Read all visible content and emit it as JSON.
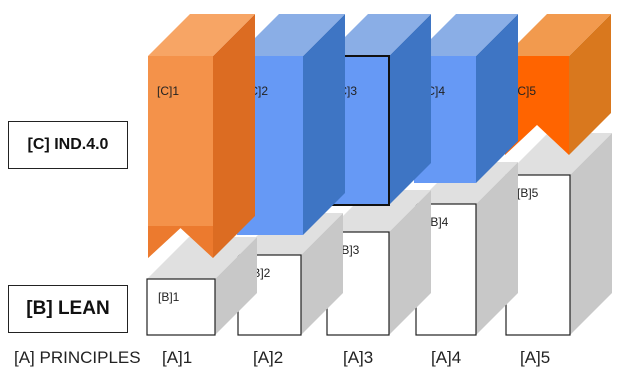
{
  "labels": {
    "c_row": "[C] IND.4.0",
    "b_row": "[B] LEAN",
    "a_row": "[A] PRINCIPLES"
  },
  "columns": [
    {
      "a": "[A]1",
      "b": "[B]1",
      "c": "[C]1",
      "c_color": "orange"
    },
    {
      "a": "[A]2",
      "b": "[B]2",
      "c": "[C]2",
      "c_color": "blue"
    },
    {
      "a": "[A]3",
      "b": "[B]3",
      "c": "[C]3",
      "c_color": "blue"
    },
    {
      "a": "[A]4",
      "b": "[B]4",
      "c": "[C]4",
      "c_color": "blue"
    },
    {
      "a": "[A]5",
      "b": "[B]5",
      "c": "[C]5",
      "c_color": "red-orange"
    }
  ],
  "colors": {
    "orange_front": "#f4924a",
    "orange_side": "#dc6c22",
    "orange_top": "#f7a565",
    "blue_front": "#6699f5",
    "blue_side": "#3e75c4",
    "blue_top": "#8aaee6",
    "redorange_front": "#ff6400",
    "redorange_side": "#d9781e",
    "redorange_top": "#f29a4e",
    "box_front": "#ffffff",
    "box_side": "#c8c8c8",
    "box_top": "#e0e0e0"
  }
}
